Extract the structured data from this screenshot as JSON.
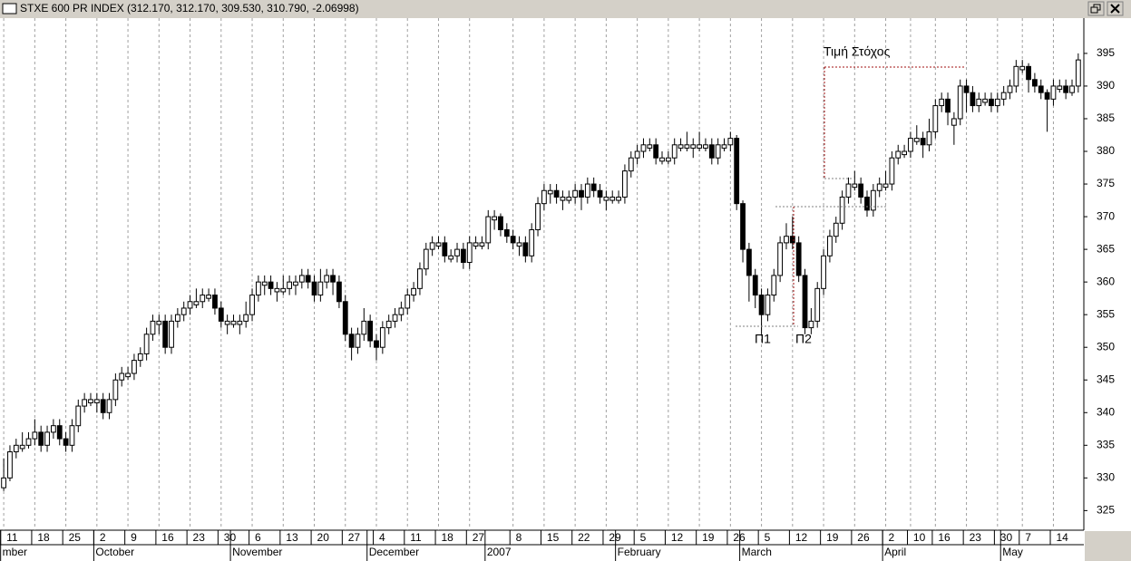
{
  "title": "STXE 600 PR INDEX (312.170, 312.170, 309.530, 310.790, -2.06998)",
  "annotations": [
    "Τιμή Στόχος",
    "Π1",
    "Π2"
  ],
  "chart_data": {
    "type": "candlestick",
    "open": [
      328.5,
      330,
      334,
      334.5,
      335,
      336,
      337,
      335,
      337,
      338,
      336,
      335,
      338,
      341,
      341.5,
      341.5,
      342,
      340,
      342,
      345,
      345.5,
      346,
      348,
      349,
      352,
      353.5,
      354,
      350,
      354,
      355,
      356,
      356.5,
      357,
      357.5,
      358,
      356,
      353.5,
      353.5,
      353.5,
      354,
      355,
      358,
      359.5,
      360,
      358.5,
      358.5,
      359,
      359.5,
      360,
      361,
      360,
      358,
      360,
      361,
      360,
      357,
      352,
      350,
      352,
      354,
      351,
      350,
      353,
      354,
      355,
      356,
      358,
      359,
      362,
      365,
      365.5,
      366,
      363.5,
      364,
      365,
      363,
      365.5,
      365.5,
      366,
      369.5,
      370,
      368,
      367,
      365.5,
      366,
      364,
      368,
      372,
      373.5,
      374,
      372.5,
      372.5,
      373,
      374,
      373,
      375,
      374,
      372.5,
      372.5,
      372.5,
      373,
      377,
      379,
      380,
      380.5,
      381,
      378.5,
      378.5,
      379,
      380.5,
      380.5,
      380.5,
      380.5,
      380.5,
      381,
      379,
      380.5,
      381,
      382,
      372,
      365,
      361,
      358,
      355,
      358,
      361,
      366,
      367,
      366,
      361,
      353,
      354,
      359,
      364,
      367,
      369,
      373,
      374.5,
      375,
      373,
      371,
      374,
      374.5,
      375,
      379,
      379.5,
      380,
      381.5,
      382,
      381,
      383,
      387,
      388,
      384,
      385,
      390,
      389,
      387,
      387.5,
      388,
      387,
      388,
      389,
      390,
      392.5,
      393,
      391,
      390,
      389,
      388,
      389.5,
      390,
      389,
      390
    ],
    "high": [
      333,
      335,
      336,
      337,
      337,
      339,
      338,
      338,
      339,
      339,
      337,
      339,
      342,
      343,
      343,
      343,
      343,
      343,
      346,
      347,
      347,
      349,
      350,
      353,
      355,
      355,
      355,
      355,
      356,
      357,
      358,
      359,
      359,
      359,
      359,
      357,
      355,
      355,
      355,
      357,
      359,
      361,
      361,
      361,
      360,
      361,
      361,
      361,
      362,
      362,
      361,
      362,
      362,
      362,
      361,
      358,
      353,
      353,
      356,
      355,
      352,
      354,
      355,
      356,
      357,
      359,
      360,
      363,
      366,
      367,
      367,
      367,
      365,
      366,
      366,
      367,
      367,
      367,
      371,
      371,
      370.5,
      369,
      368,
      367,
      367,
      369,
      373,
      375,
      375,
      375,
      374,
      374,
      375,
      375,
      376,
      376,
      375,
      374,
      374,
      374,
      378,
      380,
      381,
      382,
      382,
      382,
      380,
      380,
      382,
      382,
      383,
      382,
      383,
      382,
      382,
      382,
      382,
      383,
      382.5,
      372.5,
      366,
      362,
      359,
      359,
      362,
      367,
      369,
      370,
      367,
      362,
      356,
      360,
      365,
      368,
      370,
      374,
      376,
      377,
      376,
      374,
      375,
      376,
      377,
      380,
      381,
      381,
      383,
      384,
      383,
      385,
      388,
      389,
      389,
      386,
      391,
      391,
      390,
      389,
      389,
      389,
      389,
      390,
      391,
      394,
      394,
      393.5,
      392,
      391,
      389.5,
      391,
      391,
      391,
      391,
      395
    ],
    "low": [
      328,
      329.5,
      333,
      334,
      334.5,
      335,
      334,
      334,
      336,
      335,
      334,
      334,
      337,
      340,
      341,
      340,
      339,
      339,
      341,
      344,
      345,
      345,
      347,
      348,
      351,
      352,
      349,
      349,
      353,
      354,
      355,
      356,
      356,
      357,
      355,
      353,
      352,
      353,
      352,
      353,
      354,
      357,
      358,
      358,
      357,
      358,
      358,
      358,
      359,
      359,
      357,
      357,
      359,
      358,
      356,
      351,
      348,
      349,
      351,
      350,
      348,
      349,
      352,
      353,
      354,
      355,
      357,
      358,
      361,
      364,
      365,
      363,
      363,
      363,
      362,
      362,
      365,
      365,
      365,
      368,
      367,
      366,
      365,
      364,
      363,
      363,
      367,
      371,
      372,
      372,
      371,
      372,
      372,
      371,
      372,
      373,
      372,
      371,
      372,
      372,
      372,
      376,
      378,
      379,
      380,
      378,
      378,
      378,
      378,
      380,
      380,
      379,
      380,
      380,
      378,
      378,
      380,
      380,
      371,
      363,
      357,
      356,
      352,
      354,
      357,
      360,
      365,
      365,
      360,
      352,
      352,
      353,
      358,
      363,
      366,
      368,
      372,
      374,
      372,
      370,
      370,
      373,
      374,
      374,
      378,
      379,
      379,
      381,
      379,
      380,
      382,
      386,
      384,
      381,
      384,
      386,
      386,
      386,
      387,
      386,
      386,
      387,
      388,
      389,
      392,
      389,
      389,
      388,
      383,
      387,
      389,
      388,
      388.5,
      389
    ],
    "close": [
      330,
      334,
      335,
      335,
      336,
      337,
      335,
      337,
      338,
      336,
      335,
      338,
      341,
      342,
      342,
      342,
      340,
      342,
      345,
      346,
      346,
      348,
      349,
      352,
      354,
      354,
      350,
      354,
      355,
      356,
      357,
      357,
      358,
      358,
      356,
      354,
      354,
      354,
      354,
      355,
      358,
      360,
      360,
      359,
      359,
      359,
      360,
      360,
      361,
      360,
      358,
      360,
      361,
      360,
      357,
      352,
      350,
      352,
      354,
      351,
      350,
      353,
      354,
      355,
      356,
      358,
      359,
      362,
      365,
      366,
      366,
      364,
      364,
      365,
      363,
      366,
      366,
      366,
      370,
      370,
      368,
      367,
      366,
      366,
      364,
      368,
      372,
      374,
      374,
      373,
      373,
      373,
      374,
      373,
      375,
      374,
      373,
      373,
      373,
      373,
      377,
      379,
      380,
      381,
      381,
      379,
      379,
      379,
      381,
      381,
      381,
      381,
      381,
      381,
      379,
      381,
      381,
      382,
      372,
      365,
      361,
      358,
      355,
      358,
      361,
      366,
      367,
      366,
      361,
      353,
      354,
      359,
      364,
      367,
      369,
      373,
      375,
      375,
      373,
      371,
      374,
      375,
      375,
      379,
      380,
      380,
      382,
      382,
      381,
      383,
      387,
      388,
      386,
      385,
      390,
      389,
      387,
      388,
      388,
      387,
      388,
      389,
      390,
      393,
      393,
      391,
      390,
      389,
      388,
      390,
      390,
      389,
      390,
      394
    ],
    "up_color": "#ffffff",
    "down_color": "#000000",
    "xlim": [
      -0.6,
      173.9
    ],
    "xticks": [
      {
        "value": 0,
        "label": "11"
      },
      {
        "value": 5,
        "label": "18"
      },
      {
        "value": 10,
        "label": "25"
      },
      {
        "value": 15,
        "label": "2"
      },
      {
        "value": 20,
        "label": "9"
      },
      {
        "value": 25,
        "label": "16"
      },
      {
        "value": 30,
        "label": "23"
      },
      {
        "value": 35,
        "label": "30"
      },
      {
        "value": 40,
        "label": "6"
      },
      {
        "value": 45,
        "label": "13"
      },
      {
        "value": 50,
        "label": "20"
      },
      {
        "value": 55,
        "label": "27"
      },
      {
        "value": 60,
        "label": "4"
      },
      {
        "value": 65,
        "label": "11"
      },
      {
        "value": 70,
        "label": "18"
      },
      {
        "value": 75,
        "label": "27"
      },
      {
        "value": 82,
        "label": "8"
      },
      {
        "value": 87,
        "label": "15"
      },
      {
        "value": 92,
        "label": "22"
      },
      {
        "value": 97,
        "label": "29"
      },
      {
        "value": 102,
        "label": "5"
      },
      {
        "value": 107,
        "label": "12"
      },
      {
        "value": 112,
        "label": "19"
      },
      {
        "value": 117,
        "label": "26"
      },
      {
        "value": 122,
        "label": "5"
      },
      {
        "value": 127,
        "label": "12"
      },
      {
        "value": 132,
        "label": "19"
      },
      {
        "value": 137,
        "label": "26"
      },
      {
        "value": 142,
        "label": "2"
      },
      {
        "value": 146,
        "label": "10"
      },
      {
        "value": 150,
        "label": "16"
      },
      {
        "value": 155,
        "label": "23"
      },
      {
        "value": 160,
        "label": "30"
      },
      {
        "value": 164,
        "label": "7"
      },
      {
        "value": 169,
        "label": "14"
      }
    ],
    "months": [
      {
        "value": 0,
        "label": "mber"
      },
      {
        "value": 15,
        "label": "October"
      },
      {
        "value": 37,
        "label": "November"
      },
      {
        "value": 59,
        "label": "December"
      },
      {
        "value": 78,
        "label": "2007"
      },
      {
        "value": 99,
        "label": "February"
      },
      {
        "value": 119,
        "label": "March"
      },
      {
        "value": 142,
        "label": "April"
      },
      {
        "value": 161,
        "label": "May"
      }
    ],
    "ylim": [
      322,
      400.4
    ],
    "yticks": [
      325,
      330,
      335,
      340,
      345,
      350,
      355,
      360,
      365,
      370,
      375,
      380,
      385,
      390,
      395
    ],
    "grid": true
  }
}
